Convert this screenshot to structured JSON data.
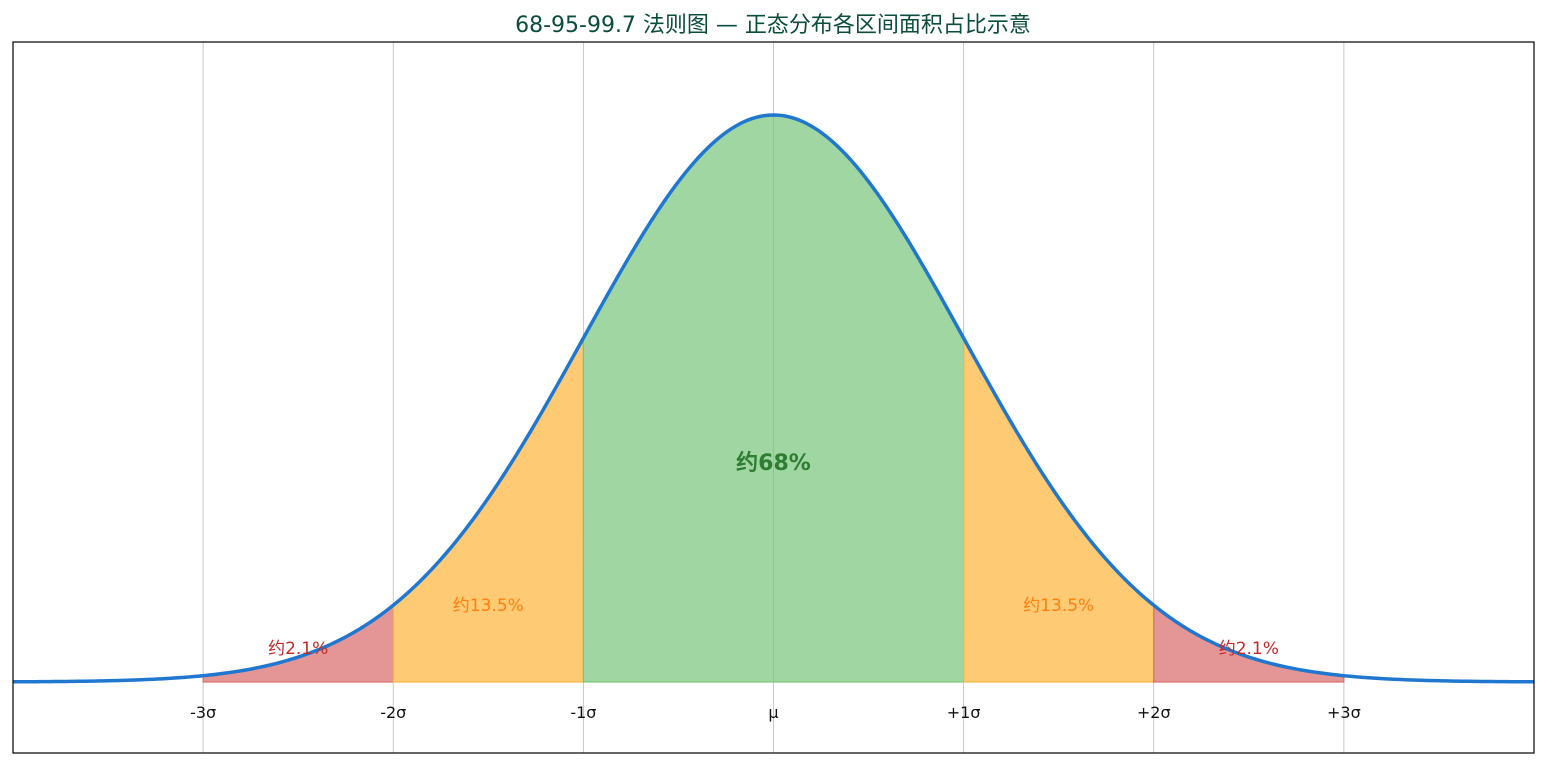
{
  "chart_data": {
    "type": "area",
    "title": "68-95-99.7 法则图 — 正态分布各区间面积占比示意",
    "xlabel": "",
    "ylabel": "",
    "x_range": [
      -4,
      4
    ],
    "mean": 0,
    "sd": 1,
    "tick_values": [
      -3,
      -2,
      -1,
      0,
      1,
      2,
      3
    ],
    "tick_labels": [
      "-3σ",
      "-2σ",
      "-1σ",
      "μ",
      "+1σ",
      "+2σ",
      "+3σ"
    ],
    "grid": "vertical",
    "regions": [
      {
        "name": "tail-left",
        "from": -3,
        "to": -2,
        "label": "约2.1%",
        "label_x": -2.5,
        "color": "#d9696b"
      },
      {
        "name": "mid-left",
        "from": -2,
        "to": -1,
        "label": "约13.5%",
        "label_x": -1.5,
        "color": "#fdb337"
      },
      {
        "name": "center",
        "from": -1,
        "to": 1,
        "label": "约68%",
        "label_x": 0,
        "color": "#78c47a"
      },
      {
        "name": "mid-right",
        "from": 1,
        "to": 2,
        "label": "约13.5%",
        "label_x": 1.5,
        "color": "#fdb337"
      },
      {
        "name": "tail-right",
        "from": 2,
        "to": 3,
        "label": "约2.1%",
        "label_x": 2.5,
        "color": "#d9696b"
      }
    ],
    "colors": {
      "curve": "#1f77d0",
      "title": "#0b4d3c",
      "center_label": "#2e7d32",
      "mid_label": "#ff7f0e",
      "tail_label": "#c62828",
      "grid": "#bbbbbb",
      "axis": "#000000"
    }
  }
}
